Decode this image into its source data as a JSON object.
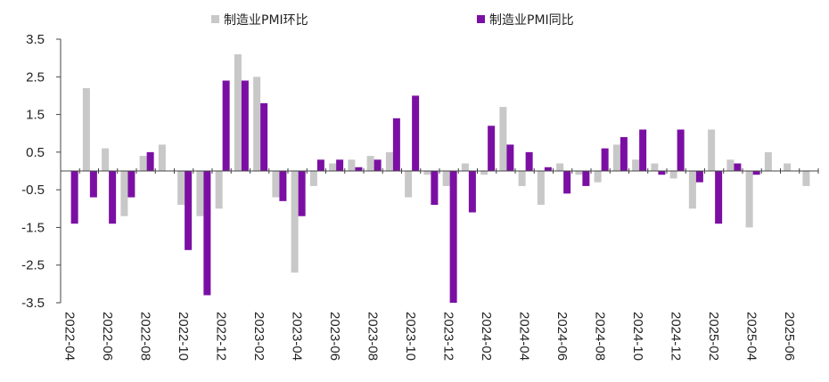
{
  "chart_data": {
    "type": "bar",
    "colors": {
      "mom": "#c8c8c8",
      "yoy": "#7b0fa3",
      "axis": "#444444"
    },
    "legend": {
      "position": "top"
    },
    "grid": false,
    "ylim": [
      -3.5,
      3.5
    ],
    "yticks": [
      "3.5",
      "2.5",
      "1.5",
      "0.5",
      "-0.5",
      "-1.5",
      "-2.5",
      "-3.5"
    ],
    "categories": [
      "2022-04",
      "2022-05",
      "2022-06",
      "2022-07",
      "2022-08",
      "2022-09",
      "2022-10",
      "2022-11",
      "2022-12",
      "2023-01",
      "2023-02",
      "2023-03",
      "2023-04",
      "2023-05",
      "2023-06",
      "2023-07",
      "2023-08",
      "2023-09",
      "2023-10",
      "2023-11",
      "2023-12",
      "2024-01",
      "2024-02",
      "2024-03",
      "2024-04",
      "2024-05",
      "2024-06",
      "2024-07",
      "2024-08",
      "2024-09",
      "2024-10",
      "2024-11",
      "2024-12",
      "2025-01",
      "2025-02",
      "2025-03",
      "2025-04",
      "2025-05",
      "2025-06",
      "2025-07"
    ],
    "xtick_labels": [
      "2022-04",
      "2022-06",
      "2022-08",
      "2022-10",
      "2022-12",
      "2023-02",
      "2023-04",
      "2023-06",
      "2023-08",
      "2023-10",
      "2023-12",
      "2024-02",
      "2024-04",
      "2024-06",
      "2024-08",
      "2024-10",
      "2024-12",
      "2025-02",
      "2025-04",
      "2025-06"
    ],
    "series": [
      {
        "name": "制造业PMI环比",
        "values": [
          0,
          2.2,
          0.6,
          -1.2,
          0.4,
          0.7,
          -0.9,
          -1.2,
          -1.0,
          3.1,
          2.5,
          -0.7,
          -2.7,
          -0.4,
          0.2,
          0.3,
          0.4,
          0.5,
          -0.7,
          -0.1,
          -0.4,
          0.2,
          -0.1,
          1.7,
          -0.4,
          -0.9,
          0.2,
          -0.1,
          -0.3,
          0.7,
          0.3,
          0.2,
          -0.2,
          -1.0,
          1.1,
          0.3,
          -1.5,
          0.5,
          0.2,
          -0.4
        ]
      },
      {
        "name": "制造业PMI同比",
        "values": [
          -1.4,
          -0.7,
          -1.4,
          -0.7,
          0.5,
          0,
          -2.1,
          -3.3,
          2.4,
          2.4,
          1.8,
          -0.8,
          -1.2,
          0.3,
          0.3,
          0.1,
          0.3,
          1.4,
          2.0,
          -0.9,
          -3.5,
          -1.1,
          1.2,
          0.7,
          0.5,
          0.1,
          -0.6,
          -0.4,
          0.6,
          0.9,
          1.1,
          -0.1,
          1.1,
          -0.3,
          -1.4,
          0.2,
          -0.1,
          0,
          0,
          0
        ]
      }
    ]
  }
}
